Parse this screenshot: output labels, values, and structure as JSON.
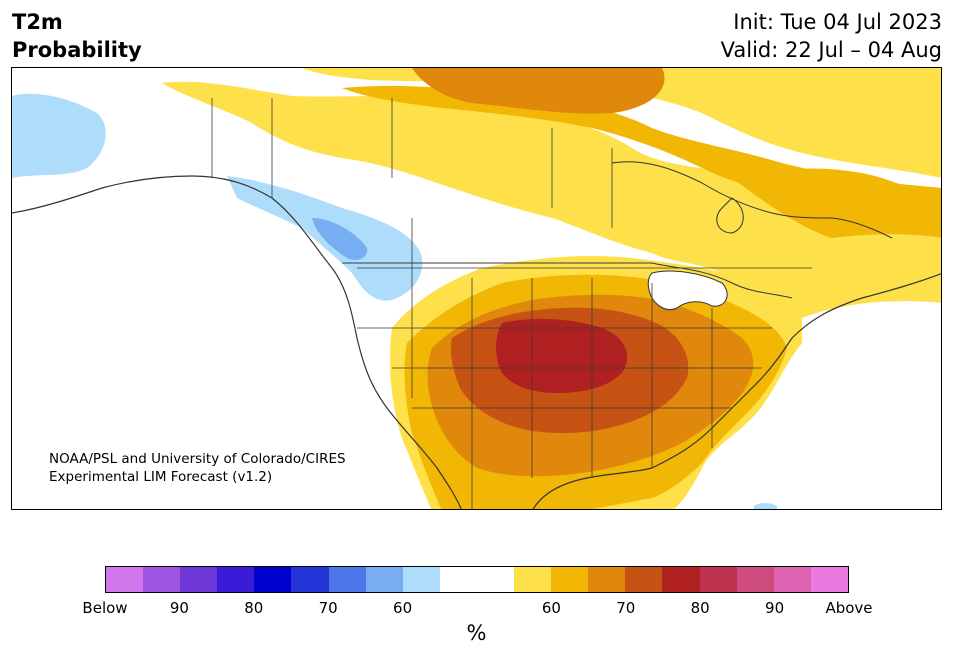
{
  "header": {
    "variable": "T2m",
    "product": "Probability",
    "init": "Init: Tue 04 Jul 2023",
    "valid": "Valid: 22 Jul – 04 Aug"
  },
  "credit": {
    "line1": "NOAA/PSL and University of Colorado/CIRES",
    "line2": "Experimental LIM Forecast (v1.2)"
  },
  "colorbar": {
    "unit": "%",
    "tick_labels": [
      "Below",
      "90",
      "80",
      "70",
      "60",
      "60",
      "70",
      "80",
      "90",
      "Above"
    ],
    "colors": [
      "#d277eb",
      "#9f55e2",
      "#6e38d8",
      "#3c1bd8",
      "#0000cc",
      "#2536d8",
      "#4f76e8",
      "#77aef2",
      "#aedcfb",
      "#ffffff",
      "#ffffff",
      "#fde04a",
      "#f2b705",
      "#df880c",
      "#c65314",
      "#b02020",
      "#bf3350",
      "#cf4c7e",
      "#dd62b2",
      "#eb7ae0"
    ]
  },
  "map": {
    "colors": {
      "ocean": "#ffffff",
      "land": "#ffffff",
      "coast": "#333333",
      "border": "#3a3a3a",
      "lightblue": "#aedcfb",
      "midblue": "#77aef2",
      "yellow": "#fde04a",
      "gold": "#f2b705",
      "orange": "#df880c",
      "darkorange": "#c65314",
      "red": "#b02020"
    }
  }
}
